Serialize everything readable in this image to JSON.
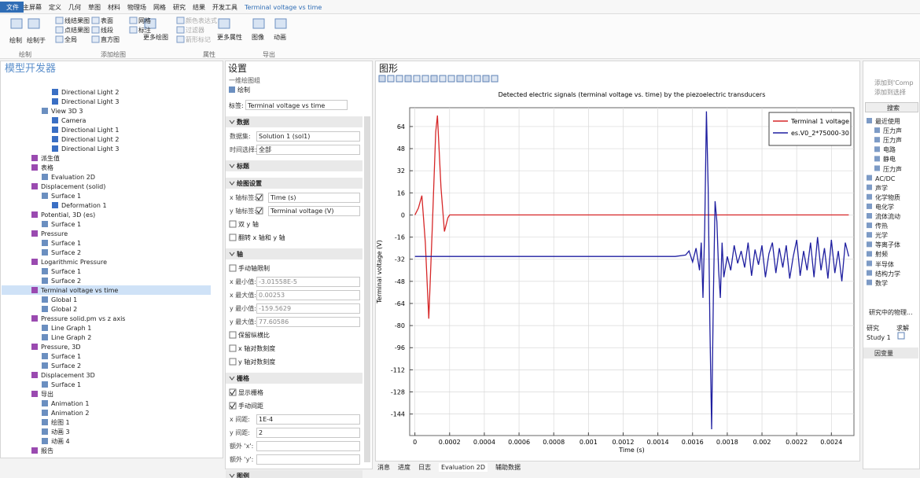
{
  "menu": [
    "文件",
    "主屏幕",
    "定义",
    "几何",
    "草图",
    "材料",
    "物理场",
    "网格",
    "研究",
    "结果",
    "开发工具",
    "Terminal voltage vs time"
  ],
  "ribbon": {
    "buttons": [
      "绘制",
      "绘制于",
      "线结果图",
      "点结果图",
      "全局",
      "表面",
      "线段",
      "直方图",
      "网格",
      "标注",
      "更多绘图",
      "颜色表达式",
      "过滤器",
      "箭形标记",
      "更多属性",
      "图像",
      "动画"
    ],
    "groups": [
      "绘制",
      "添加绘图",
      "属性",
      "导出"
    ]
  },
  "tree": {
    "title": "模型开发器",
    "items": [
      "Directional Light 2",
      "Directional Light 3",
      "View 3D 3",
      "Camera",
      "Directional Light 1",
      "Directional Light 2",
      "Directional Light 3",
      "派生值",
      "表格",
      "Evaluation 2D",
      "Displacement (solid)",
      "Surface 1",
      "Deformation 1",
      "Potential, 3D (es)",
      "Surface 1",
      "Pressure",
      "Surface 1",
      "Surface 2",
      "Logarithmic Pressure",
      "Surface 1",
      "Surface 2",
      "Terminal voltage vs time",
      "Global 1",
      "Global 2",
      "Pressure solid.pm vs z axis",
      "Line Graph 1",
      "Line Graph 2",
      "Pressure, 3D",
      "Surface 1",
      "Surface 2",
      "Displacement 3D",
      "Surface 1",
      "导出",
      "Animation 1",
      "Animation 2",
      "绘图 1",
      "动画 3",
      "动画 4",
      "报告"
    ]
  },
  "settings": {
    "title": "设置",
    "subtitle": "一维绘图组",
    "plot_button": "绘制",
    "label_field": {
      "label": "标签:",
      "value": "Terminal voltage vs time"
    },
    "sections": [
      {
        "title": "数据",
        "fields": [
          {
            "label": "数据集:",
            "value": "Solution 1 (sol1)"
          },
          {
            "label": "时间选择:",
            "value": "全部"
          }
        ]
      },
      {
        "title": "标题",
        "fields": []
      },
      {
        "title": "绘图设置",
        "fields": [
          {
            "label": "x 轴标签:",
            "value": "Time (s)",
            "checked": true
          },
          {
            "label": "y 轴标签:",
            "value": "Terminal voltage (V)",
            "checked": true
          },
          {
            "check": "双 y 轴",
            "checked": false
          },
          {
            "check": "翻转 x 轴和 y 轴",
            "checked": false
          }
        ]
      },
      {
        "title": "轴",
        "fields": [
          {
            "check": "手动轴限制",
            "checked": false
          },
          {
            "label": "x 最小值:",
            "value": "-3.01558E-5"
          },
          {
            "label": "x 最大值:",
            "value": "0.00253"
          },
          {
            "label": "y 最小值:",
            "value": "-159.5629"
          },
          {
            "label": "y 最大值:",
            "value": "77.60586"
          },
          {
            "check": "保留纵横比",
            "checked": false
          },
          {
            "check": "x 轴对数刻度",
            "checked": false
          },
          {
            "check": "y 轴对数刻度",
            "checked": false
          }
        ]
      },
      {
        "title": "栅格",
        "fields": [
          {
            "check": "显示栅格",
            "checked": true
          },
          {
            "check": "手动间距",
            "checked": true
          },
          {
            "label": "x 间距:",
            "value": "1E-4"
          },
          {
            "label": "y 间距:",
            "value": "2"
          },
          {
            "label": "额外 'x':",
            "value": ""
          },
          {
            "label": "额外 'y':",
            "value": ""
          }
        ]
      },
      {
        "title": "图例",
        "fields": []
      }
    ]
  },
  "graphics_title": "图形",
  "chart_data": {
    "type": "line",
    "title": "Detected electric signals (terminal voltage vs. time) by the piezoelectric transducers",
    "x_label": "Time (s)",
    "y_label": "Terminal voltage (V)",
    "xlim": [
      -3.01558e-05,
      0.00253
    ],
    "ylim": [
      -159.5629,
      77.60586
    ],
    "xticks": [
      0,
      0.0002,
      0.0004,
      0.0006,
      0.0008,
      0.001,
      0.0012,
      0.0014,
      0.0016,
      0.0018,
      0.002,
      0.0022,
      0.0024
    ],
    "yticks": [
      64,
      48,
      32,
      16,
      0,
      -16,
      -32,
      -48,
      -64,
      -80,
      -96,
      -112,
      -128,
      -144
    ],
    "grid": true,
    "legend": "upper right",
    "series": [
      {
        "name": "Terminal 1 voltage",
        "color": "#d62728",
        "x": [
          0,
          2e-05,
          4e-05,
          6e-05,
          8e-05,
          0.0001,
          0.00012,
          0.00013,
          0.00015,
          0.00017,
          0.00019,
          0.0002,
          0.0025
        ],
        "values": [
          0,
          5,
          14,
          -20,
          -75,
          -10,
          60,
          72,
          20,
          -12,
          -2,
          0,
          0
        ]
      },
      {
        "name": "es.V0_2*75000-30",
        "color": "#1f1fa0",
        "x": [
          0,
          0.0015,
          0.00156,
          0.00158,
          0.0016,
          0.00162,
          0.00164,
          0.00165,
          0.00166,
          0.00167,
          0.00168,
          0.00169,
          0.0017,
          0.00171,
          0.00172,
          0.00173,
          0.00174,
          0.00175,
          0.00176,
          0.00177,
          0.00178,
          0.0018,
          0.00182,
          0.00184,
          0.00186,
          0.00188,
          0.0019,
          0.00192,
          0.00194,
          0.00196,
          0.00198,
          0.002,
          0.00202,
          0.00204,
          0.00206,
          0.00208,
          0.0021,
          0.00212,
          0.00214,
          0.00216,
          0.00218,
          0.0022,
          0.00222,
          0.00224,
          0.00226,
          0.00228,
          0.0023,
          0.00232,
          0.00234,
          0.00236,
          0.00238,
          0.0024,
          0.00242,
          0.00244,
          0.00246,
          0.00248,
          0.0025
        ],
        "values": [
          -30,
          -30,
          -29,
          -26,
          -34,
          -24,
          -40,
          -20,
          -60,
          -10,
          75,
          20,
          -80,
          -155,
          -60,
          10,
          -5,
          -40,
          -60,
          -20,
          -45,
          -30,
          -40,
          -22,
          -35,
          -26,
          -38,
          -20,
          -44,
          -25,
          -36,
          -22,
          -45,
          -28,
          -20,
          -42,
          -24,
          -38,
          -22,
          -46,
          -30,
          -18,
          -44,
          -26,
          -40,
          -20,
          -45,
          -16,
          -40,
          -24,
          -46,
          -18,
          -42,
          -26,
          -48,
          -20,
          -30
        ]
      }
    ]
  },
  "right_panel": {
    "actions": [
      "添加到'Comp",
      "添加到选择"
    ],
    "search": "搜索",
    "items": [
      "最近使用",
      "压力声",
      "压力声",
      "电路",
      "静电",
      "压力声",
      "AC/DC",
      "声学",
      "化学物质",
      "电化学",
      "流体流动",
      "传热",
      "光学",
      "等离子体",
      "射频",
      "半导体",
      "结构力学",
      "数学"
    ],
    "study_title": "研究中的物理...",
    "study_headers": [
      "研究",
      "求解"
    ],
    "study_row": "Study 1",
    "dependent": "因变量"
  },
  "bottom_tabs": [
    "消息",
    "进度",
    "日志",
    "Evaluation 2D",
    "辅助数据"
  ]
}
